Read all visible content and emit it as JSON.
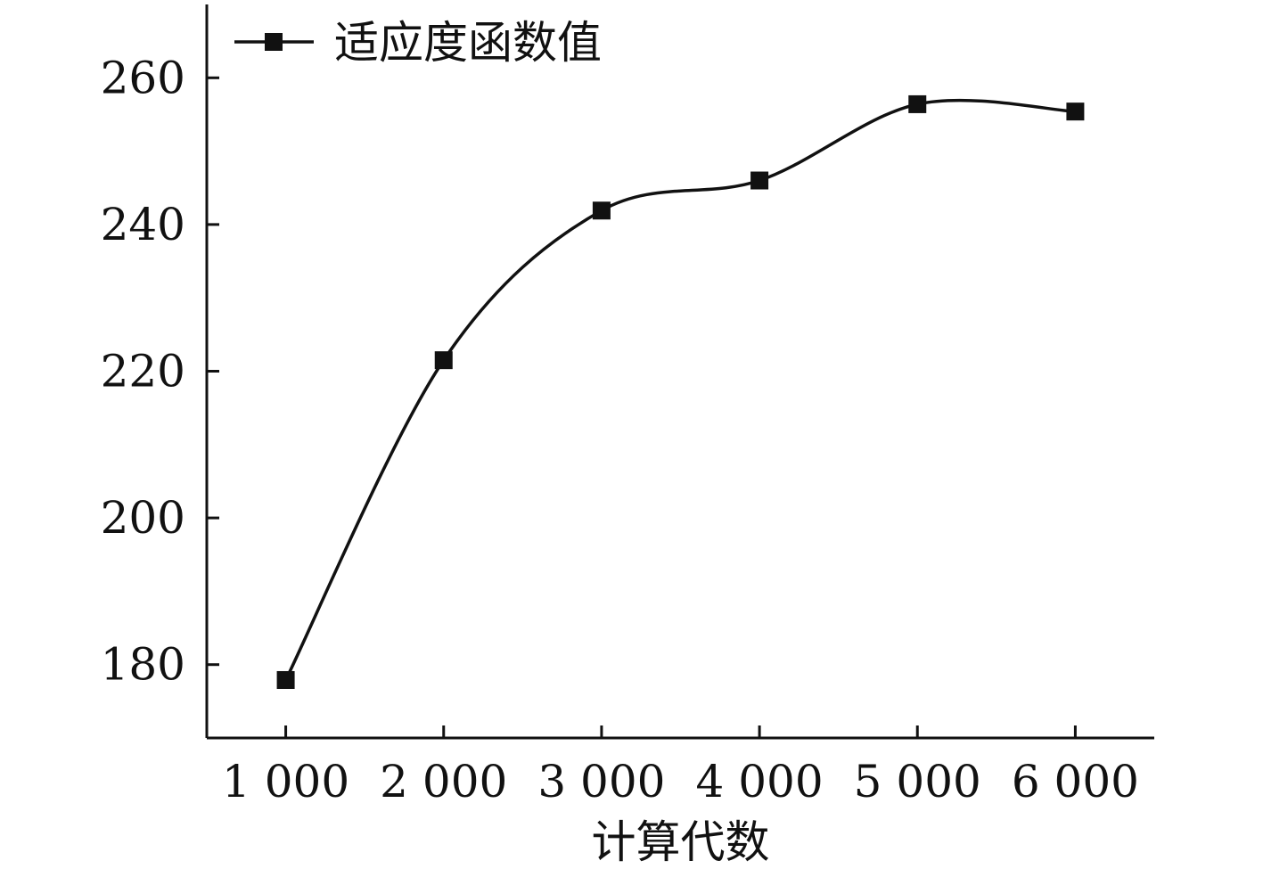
{
  "chart_data": {
    "type": "line",
    "title": "",
    "xlabel": "计算代数",
    "ylabel": "",
    "x": [
      1000,
      2000,
      3000,
      4000,
      5000,
      6000
    ],
    "x_tick_labels": [
      "1 000",
      "2 000",
      "3 000",
      "4 000",
      "5 000",
      "6 000"
    ],
    "y_ticks": [
      180,
      200,
      220,
      240,
      260
    ],
    "y_tick_labels": [
      "180",
      "200",
      "220",
      "240",
      "260"
    ],
    "xlim": [
      500,
      6500
    ],
    "ylim": [
      170,
      270
    ],
    "series": [
      {
        "name": "适应度函数值",
        "marker": "square",
        "smooth": true,
        "color": "#111111",
        "values": [
          177.9,
          221.5,
          241.9,
          246.0,
          256.4,
          255.4
        ]
      }
    ],
    "legend_position": "top-left",
    "grid": false
  }
}
